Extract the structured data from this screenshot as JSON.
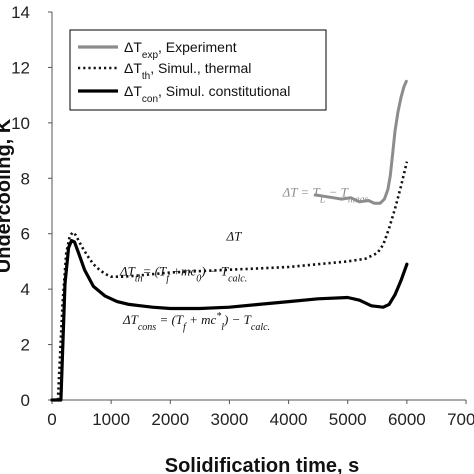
{
  "chart_data": {
    "type": "line",
    "title": "",
    "xlabel": "Solidification time, s",
    "ylabel": "Undercooling, K",
    "xlim": [
      0,
      7000
    ],
    "ylim": [
      0,
      14
    ],
    "x_ticks": [
      0,
      1000,
      2000,
      3000,
      4000,
      5000,
      6000,
      7000
    ],
    "y_ticks": [
      0,
      2,
      4,
      6,
      8,
      10,
      12,
      14
    ],
    "x_tick_labels": [
      "0",
      "1000",
      "2000",
      "3000",
      "4000",
      "5000",
      "6000",
      "7000"
    ],
    "y_tick_labels": [
      "0",
      "2",
      "4",
      "6",
      "8",
      "10",
      "12",
      "14"
    ],
    "grid": false,
    "legend": {
      "position": "top-left",
      "entries": [
        {
          "symbol": "ΔT",
          "subscript": "exp",
          "text": ", Experiment"
        },
        {
          "symbol": "ΔT",
          "subscript": "th",
          "text": ",   Simul., thermal"
        },
        {
          "symbol": "ΔT",
          "subscript": "con",
          "text": ", Simul. constitutional"
        }
      ]
    },
    "series": [
      {
        "name": "ΔTexp, Experiment",
        "color": "#8c8c8c",
        "style": "solid",
        "x": [
          4450,
          4600,
          4750,
          4900,
          5050,
          5200,
          5350,
          5450,
          5550,
          5620,
          5680,
          5720,
          5760,
          5800,
          5850,
          5900,
          5950,
          5990
        ],
        "y": [
          7.4,
          7.35,
          7.3,
          7.25,
          7.3,
          7.15,
          7.2,
          7.1,
          7.1,
          7.25,
          7.6,
          8.1,
          8.9,
          9.7,
          10.4,
          10.9,
          11.3,
          11.5
        ]
      },
      {
        "name": "ΔTth, Simul., thermal",
        "color": "#111111",
        "style": "dotted",
        "x": [
          100,
          180,
          240,
          300,
          350,
          400,
          500,
          600,
          700,
          800,
          900,
          1000,
          1200,
          1500,
          2000,
          2500,
          3000,
          3500,
          4000,
          4500,
          5000,
          5300,
          5500,
          5600,
          5700,
          5800,
          5900,
          6000
        ],
        "y": [
          0,
          3.5,
          5.3,
          5.9,
          6.05,
          5.95,
          5.55,
          5.2,
          4.9,
          4.7,
          4.55,
          4.45,
          4.45,
          4.5,
          4.6,
          4.65,
          4.7,
          4.75,
          4.8,
          4.9,
          5.0,
          5.1,
          5.3,
          5.6,
          6.2,
          6.9,
          7.7,
          8.6
        ]
      },
      {
        "name": "ΔTcon, Simul. constitutional",
        "color": "#000000",
        "style": "solid",
        "x": [
          0,
          150,
          220,
          280,
          330,
          380,
          450,
          550,
          700,
          900,
          1100,
          1300,
          1500,
          1700,
          2000,
          2500,
          3000,
          3500,
          4000,
          4500,
          5000,
          5200,
          5400,
          5600,
          5700,
          5800,
          5900,
          6000
        ],
        "y": [
          0,
          0,
          4.2,
          5.5,
          5.75,
          5.7,
          5.3,
          4.7,
          4.1,
          3.75,
          3.55,
          3.45,
          3.4,
          3.35,
          3.3,
          3.3,
          3.35,
          3.45,
          3.55,
          3.65,
          3.7,
          3.6,
          3.4,
          3.35,
          3.45,
          3.8,
          4.3,
          4.9
        ]
      }
    ],
    "annotations": [
      {
        "kind": "exp",
        "text": "ΔT = T_L − T_meas.",
        "pre": "ΔT = T",
        "sub1": "L",
        "mid": " − T",
        "sub2": "meas.",
        "x": 3900,
        "y": 7.35,
        "color": "#8c8c8c"
      },
      {
        "kind": "label",
        "text": "ΔT",
        "x": 2950,
        "y": 5.75,
        "color": "#111111"
      },
      {
        "kind": "th",
        "text": "ΔTth = (Tf + mc0) − Tcalc.",
        "x": 1150,
        "y": 4.5,
        "color": "#111111"
      },
      {
        "kind": "con",
        "text": "ΔTcons = (Tf + mc*l) − Tcalc.",
        "x": 1200,
        "y": 2.75,
        "color": "#111111"
      }
    ]
  }
}
